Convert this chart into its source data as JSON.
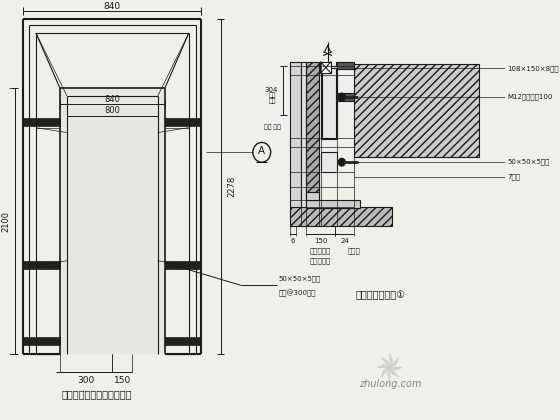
{
  "bg_color": "#f0f0eb",
  "line_color": "#1a1a1a",
  "title_left": "电梯套干挂龙骨位置示意图",
  "title_right": "门套一详大样图①",
  "dim_840_top": "840",
  "dim_840_inner": "840",
  "dim_800": "800",
  "dim_2100": "2100",
  "dim_2278": "2278",
  "dim_300": "300",
  "dim_150": "150",
  "label_A": "A",
  "ann_50x50x5_a": "50×50×5钢管",
  "ann_50x50x5_b": "刻距@300双向",
  "ann_108": "108×150×8钢板",
  "ann_M12": "M12膨胀螺栓100",
  "ann_50x50x5_r": "50×50×5钢管",
  "ann_7": "7级板",
  "ann_304": "304",
  "ann_150": "150",
  "ann_24": "24",
  "ann_6": "6",
  "ann_大理石": "大理石饰面",
  "ann_花岗岩": "花岗岩",
  "watermark": "zhulong.com"
}
